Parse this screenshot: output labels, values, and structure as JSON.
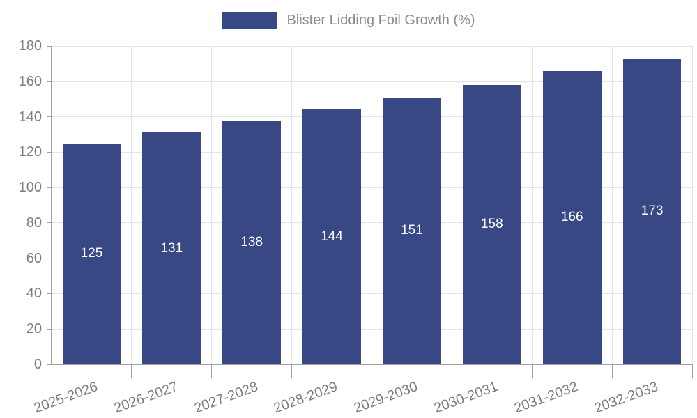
{
  "chart_data": {
    "type": "bar",
    "title": "Blister Lidding Foil Growth (%)",
    "categories": [
      "2025-2026",
      "2026-2027",
      "2027-2028",
      "2028-2029",
      "2029-2030",
      "2030-2031",
      "2031-2032",
      "2032-2033"
    ],
    "values": [
      125,
      131,
      138,
      144,
      151,
      158,
      166,
      173
    ],
    "xlabel": "",
    "ylabel": "",
    "ylim": [
      0,
      180
    ],
    "yticks": [
      0,
      20,
      40,
      60,
      80,
      100,
      120,
      140,
      160,
      180
    ],
    "grid": true,
    "legend_position": "top-center",
    "legend_entries": [
      "Blister Lidding Foil Growth (%)"
    ],
    "value_labels_shown": true,
    "x_label_rotation_deg": -20,
    "colors": {
      "bar": "#374885",
      "value_label": "#ffffff",
      "axis": "#9f9f9f",
      "gridline": "#e3e3e3",
      "tick_label": "#7d7d7d",
      "legend_text": "#8c8c8c",
      "background": "#ffffff"
    }
  }
}
